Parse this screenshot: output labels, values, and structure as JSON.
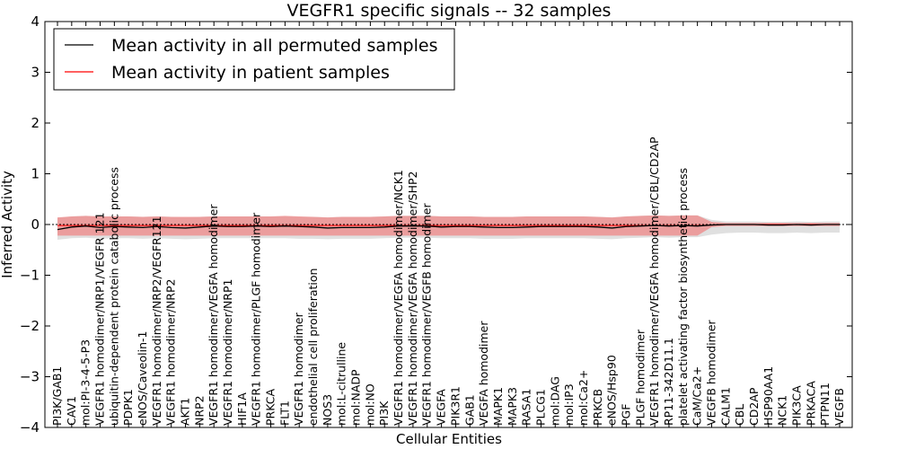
{
  "chart_data": {
    "type": "line",
    "title": "VEGFR1 specific signals -- 32 samples",
    "xlabel": "Cellular Entities",
    "ylabel": "Inferred Activity",
    "ylim": [
      -4,
      4
    ],
    "yticks": [
      -4,
      -3,
      -2,
      -1,
      0,
      1,
      2,
      3,
      4
    ],
    "ytick_labels": [
      "−4",
      "−3",
      "−2",
      "−1",
      "0",
      "1",
      "2",
      "3",
      "4"
    ],
    "legend_position": "top-left",
    "categories": [
      "PI3K/GAB1",
      "CAV1",
      "mol:PI-3-4-5-P3",
      "VEGFR1 homodimer/NRP1/VEGFR 121",
      "ubiquitin-dependent protein catabolic process",
      "PDPK1",
      "eNOS/Caveolin-1",
      "VEGFR1 homodimer/NRP2/VEGFR121",
      "VEGFR1 homodimer/NRP2",
      "AKT1",
      "NRP2",
      "VEGFR1 homodimer/VEGFA homodimer",
      "VEGFR1 homodimer/NRP1",
      "HIF1A",
      "VEGFR1 homodimer/PLGF homodimer",
      "PRKCA",
      "FLT1",
      "VEGFR1 homodimer",
      "endothelial cell proliferation",
      "NOS3",
      "mol:L-citrulline",
      "mol:NADP",
      "mol:NO",
      "PI3K",
      "VEGFR1 homodimer/VEGFA homodimer/NCK1",
      "VEGFR1 homodimer/VEGFA homodimer/SHP2",
      "VEGFR1 homodimer/VEGFB homodimer",
      "VEGFA",
      "PIK3R1",
      "GAB1",
      "VEGFA homodimer",
      "MAPK1",
      "MAPK3",
      "RASA1",
      "PLCG1",
      "mol:DAG",
      "mol:IP3",
      "mol:Ca2+",
      "PRKCB",
      "eNOS/Hsp90",
      "PGF",
      "PLGF homodimer",
      "VEGFR1 homodimer/VEGFA homodimer/CBL/CD2AP",
      "RP11-342D11.1",
      "platelet activating factor biosynthetic process",
      "CaM/Ca2+",
      "VEGFB homodimer",
      "CALM1",
      "CBL",
      "CD2AP",
      "HSP90AA1",
      "NCK1",
      "PIK3CA",
      "PRKACA",
      "PTPN11",
      "VEGFB"
    ],
    "series": [
      {
        "name": "Mean activity in all permuted samples",
        "color": "#000000",
        "values": [
          -0.1,
          -0.05,
          -0.03,
          -0.06,
          -0.04,
          -0.05,
          -0.06,
          -0.04,
          -0.06,
          -0.07,
          -0.05,
          -0.03,
          -0.04,
          -0.04,
          -0.03,
          -0.04,
          -0.03,
          -0.04,
          -0.05,
          -0.07,
          -0.06,
          -0.06,
          -0.06,
          -0.05,
          -0.03,
          -0.03,
          -0.03,
          -0.05,
          -0.04,
          -0.04,
          -0.05,
          -0.06,
          -0.06,
          -0.05,
          -0.04,
          -0.04,
          -0.04,
          -0.04,
          -0.05,
          -0.07,
          -0.04,
          -0.03,
          -0.02,
          -0.03,
          -0.02,
          -0.03,
          -0.01,
          0.0,
          0.0,
          0.0,
          -0.01,
          -0.01,
          0.0,
          -0.01,
          0.0,
          0.0
        ],
        "lower": [
          -0.3,
          -0.27,
          -0.26,
          -0.28,
          -0.27,
          -0.27,
          -0.28,
          -0.27,
          -0.28,
          -0.29,
          -0.28,
          -0.27,
          -0.27,
          -0.27,
          -0.27,
          -0.27,
          -0.27,
          -0.28,
          -0.28,
          -0.29,
          -0.28,
          -0.28,
          -0.28,
          -0.27,
          -0.26,
          -0.26,
          -0.26,
          -0.27,
          -0.27,
          -0.27,
          -0.28,
          -0.28,
          -0.28,
          -0.27,
          -0.27,
          -0.27,
          -0.27,
          -0.27,
          -0.28,
          -0.29,
          -0.27,
          -0.26,
          -0.25,
          -0.26,
          -0.25,
          -0.25,
          -0.2,
          -0.17,
          -0.16,
          -0.16,
          -0.17,
          -0.17,
          -0.16,
          -0.17,
          -0.16,
          -0.16
        ],
        "upper": [
          0.13,
          0.16,
          0.17,
          0.15,
          0.16,
          0.16,
          0.15,
          0.16,
          0.15,
          0.14,
          0.15,
          0.16,
          0.16,
          0.16,
          0.16,
          0.16,
          0.16,
          0.15,
          0.15,
          0.14,
          0.15,
          0.15,
          0.15,
          0.16,
          0.17,
          0.17,
          0.17,
          0.16,
          0.16,
          0.16,
          0.15,
          0.15,
          0.15,
          0.16,
          0.16,
          0.16,
          0.16,
          0.16,
          0.15,
          0.14,
          0.16,
          0.17,
          0.18,
          0.17,
          0.18,
          0.18,
          0.09,
          0.06,
          0.06,
          0.06,
          0.05,
          0.05,
          0.06,
          0.05,
          0.06,
          0.06
        ],
        "band_color": "#cccccc"
      },
      {
        "name": "Mean activity in patient samples",
        "color": "#ff0000",
        "values": [
          -0.02,
          -0.02,
          -0.02,
          -0.02,
          -0.02,
          -0.02,
          -0.02,
          -0.02,
          -0.02,
          -0.02,
          -0.02,
          -0.02,
          -0.02,
          -0.02,
          -0.02,
          -0.02,
          -0.02,
          -0.02,
          -0.02,
          -0.02,
          -0.02,
          -0.02,
          -0.02,
          -0.02,
          -0.02,
          -0.02,
          -0.02,
          -0.02,
          -0.02,
          -0.02,
          -0.02,
          -0.02,
          -0.02,
          -0.02,
          -0.02,
          -0.02,
          -0.02,
          -0.02,
          -0.02,
          -0.02,
          -0.02,
          -0.02,
          -0.02,
          -0.02,
          -0.02,
          -0.02,
          -0.01,
          0.0,
          0.0,
          0.0,
          0.0,
          0.0,
          0.0,
          0.0,
          0.0,
          0.0
        ],
        "lower": [
          -0.22,
          -0.22,
          -0.22,
          -0.22,
          -0.22,
          -0.22,
          -0.22,
          -0.22,
          -0.22,
          -0.22,
          -0.22,
          -0.22,
          -0.22,
          -0.22,
          -0.22,
          -0.22,
          -0.22,
          -0.22,
          -0.22,
          -0.22,
          -0.22,
          -0.22,
          -0.22,
          -0.22,
          -0.22,
          -0.22,
          -0.22,
          -0.22,
          -0.22,
          -0.22,
          -0.22,
          -0.22,
          -0.22,
          -0.22,
          -0.22,
          -0.22,
          -0.22,
          -0.22,
          -0.22,
          -0.22,
          -0.22,
          -0.22,
          -0.22,
          -0.22,
          -0.22,
          -0.22,
          -0.05,
          -0.03,
          -0.03,
          -0.03,
          -0.03,
          -0.03,
          -0.03,
          -0.03,
          -0.03,
          -0.03
        ],
        "upper": [
          0.14,
          0.16,
          0.17,
          0.16,
          0.16,
          0.16,
          0.15,
          0.16,
          0.15,
          0.15,
          0.15,
          0.16,
          0.16,
          0.16,
          0.16,
          0.16,
          0.17,
          0.16,
          0.15,
          0.14,
          0.15,
          0.15,
          0.15,
          0.16,
          0.17,
          0.17,
          0.17,
          0.16,
          0.16,
          0.16,
          0.15,
          0.15,
          0.15,
          0.16,
          0.16,
          0.16,
          0.16,
          0.16,
          0.15,
          0.14,
          0.16,
          0.17,
          0.18,
          0.17,
          0.18,
          0.18,
          0.05,
          0.03,
          0.03,
          0.03,
          0.03,
          0.03,
          0.03,
          0.03,
          0.03,
          0.03
        ],
        "band_color": "#f08080"
      }
    ]
  }
}
